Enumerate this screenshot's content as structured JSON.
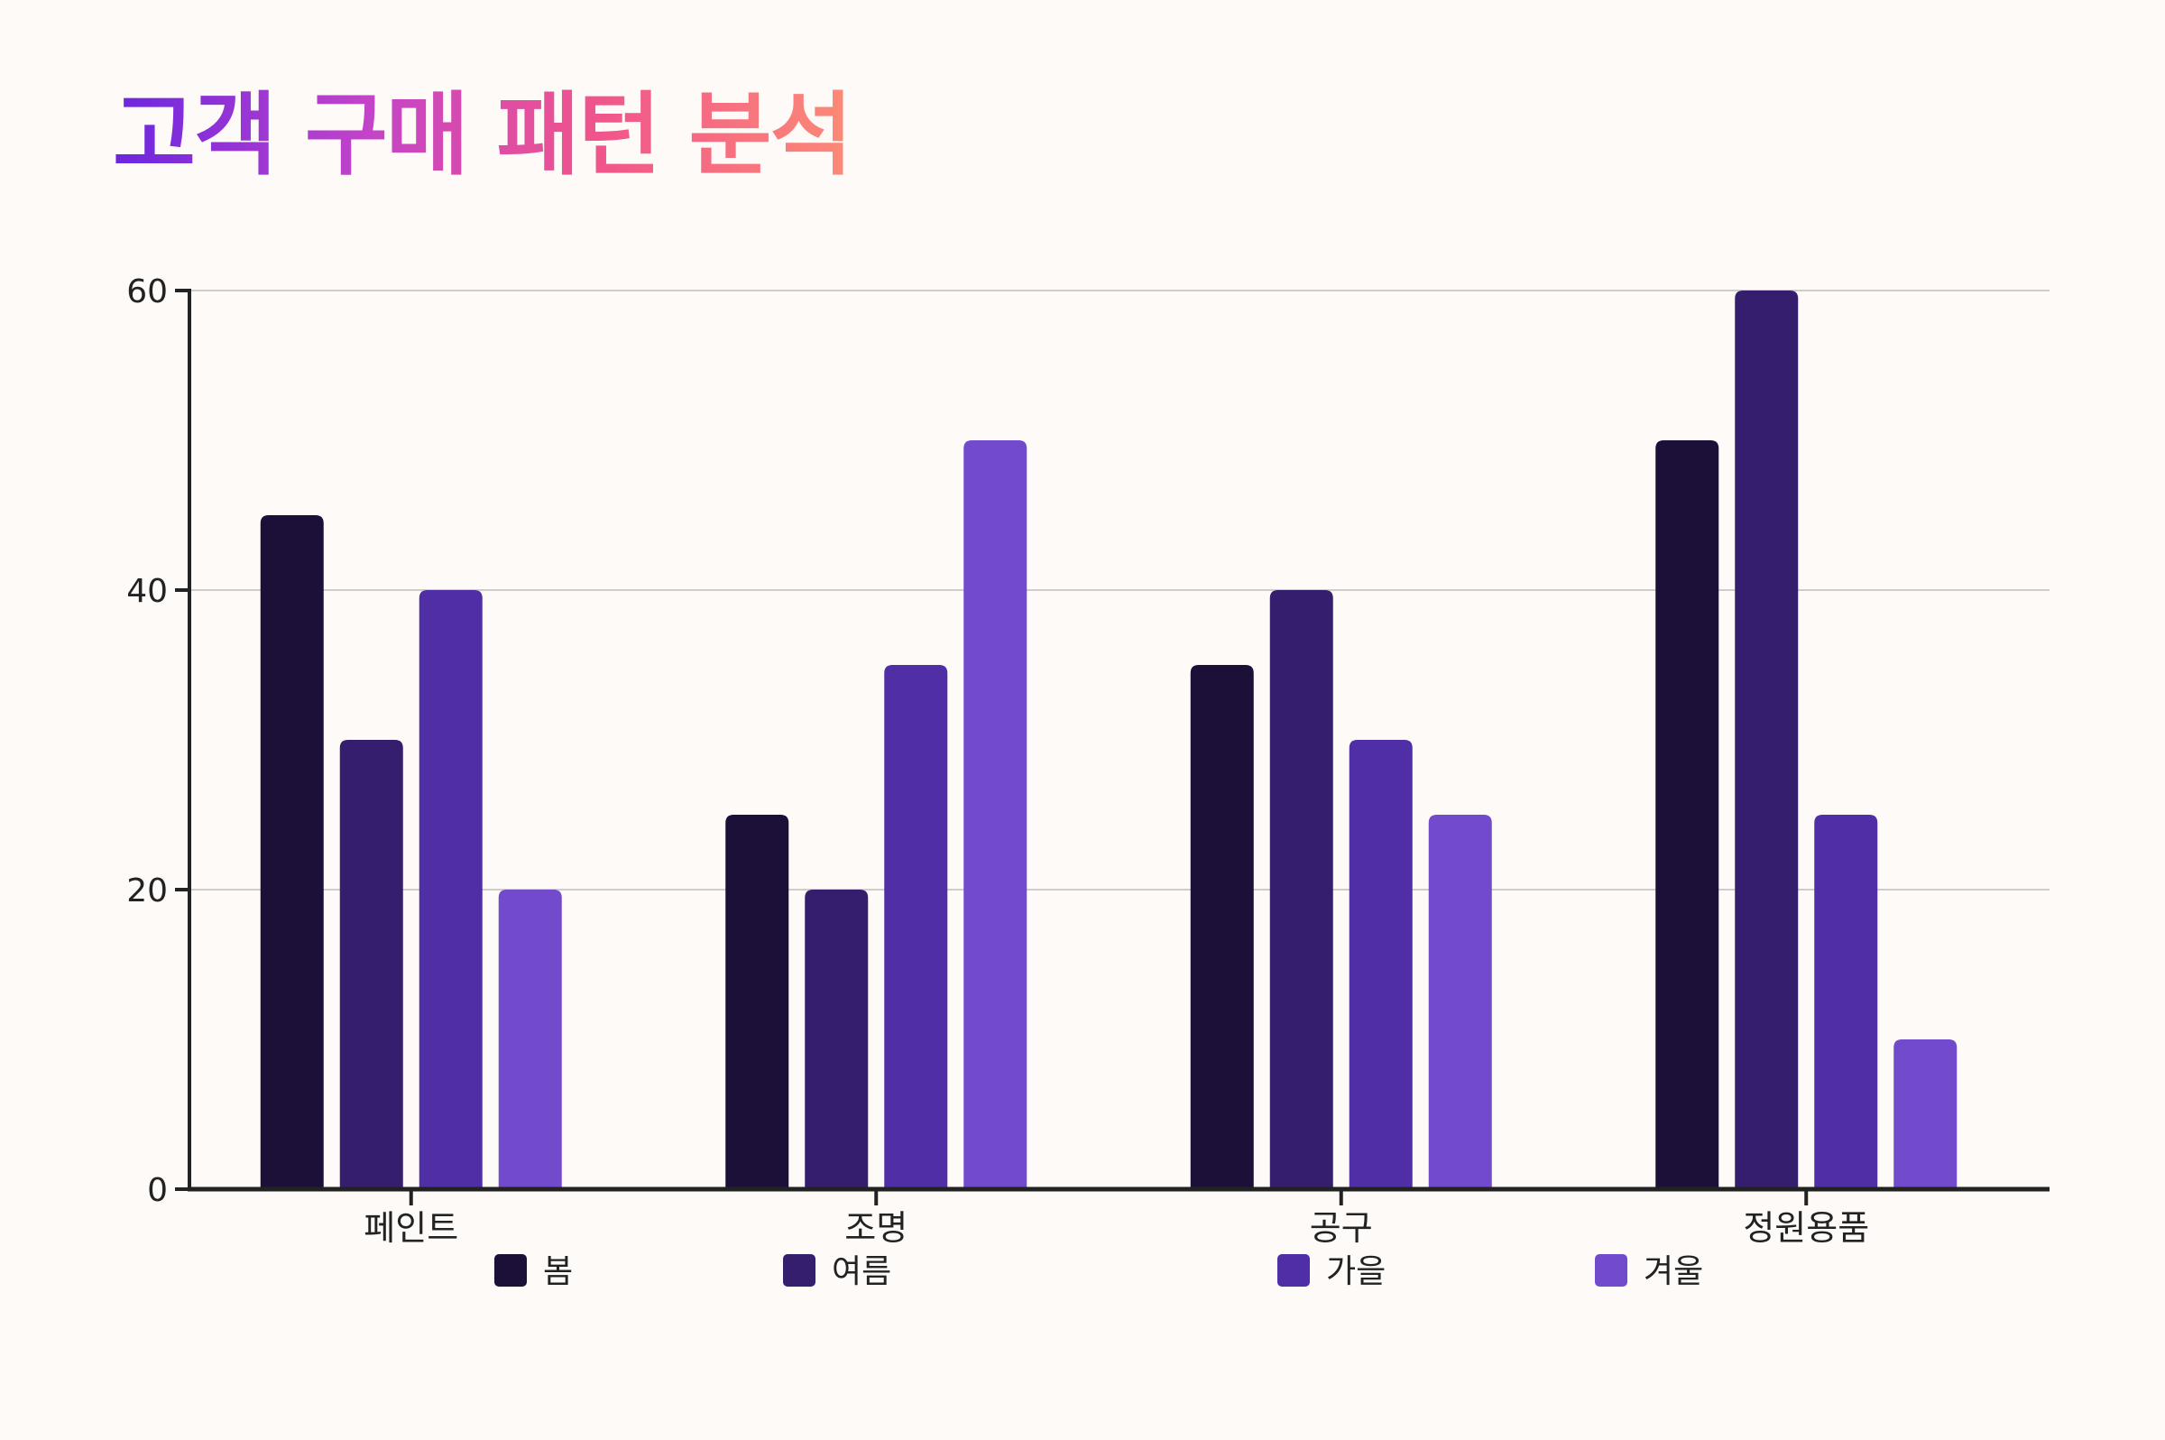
{
  "title": "고객 구매 패턴 분석",
  "colors": {
    "background": "#fefaf7",
    "axis": "#222222",
    "grid": "#cfcccc",
    "series": [
      "#1c1039",
      "#361e6f",
      "#4f2ea6",
      "#724bcd"
    ]
  },
  "chart_data": {
    "type": "bar",
    "categories": [
      "페인트",
      "조명",
      "공구",
      "정원용품"
    ],
    "series": [
      {
        "name": "봄",
        "values": [
          45,
          25,
          35,
          50
        ]
      },
      {
        "name": "여름",
        "values": [
          30,
          20,
          40,
          60
        ]
      },
      {
        "name": "가을",
        "values": [
          40,
          35,
          30,
          25
        ]
      },
      {
        "name": "겨울",
        "values": [
          20,
          50,
          25,
          10
        ]
      }
    ],
    "ylim": [
      0,
      60
    ],
    "yticks": [
      0,
      20,
      40,
      60
    ],
    "grid": true,
    "legend_position": "bottom"
  }
}
